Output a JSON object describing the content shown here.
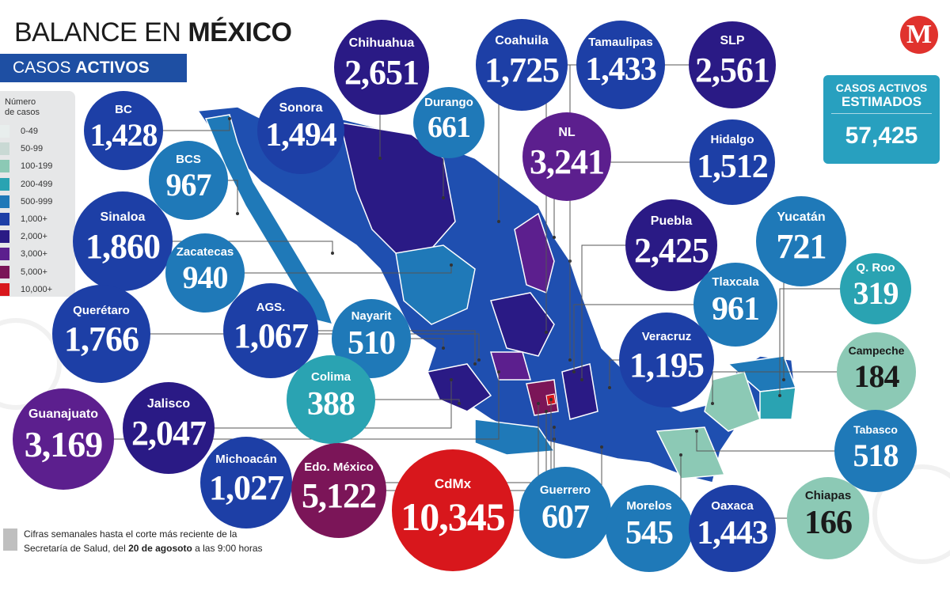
{
  "header": {
    "title_light": "BALANCE EN ",
    "title_bold": "MÉXICO",
    "subtitle_light": "CASOS ",
    "subtitle_bold": "ACTIVOS",
    "logo": "M"
  },
  "legend": {
    "title_line1": "Número",
    "title_line2": "de casos",
    "items": [
      {
        "label": "0-49",
        "color": "#e8eeed"
      },
      {
        "label": "50-99",
        "color": "#c9d9d4"
      },
      {
        "label": "100-199",
        "color": "#8cc9b5"
      },
      {
        "label": "200-499",
        "color": "#2aa3b2"
      },
      {
        "label": "500-999",
        "color": "#1f79b8"
      },
      {
        "label": "1,000+",
        "color": "#1d3fa6"
      },
      {
        "label": "2,000+",
        "color": "#2a1a85"
      },
      {
        "label": "3,000+",
        "color": "#5c1f8e"
      },
      {
        "label": "5,000+",
        "color": "#7b1558"
      },
      {
        "label": "10,000+",
        "color": "#d8171c"
      }
    ]
  },
  "total": {
    "line1": "CASOS ACTIVOS",
    "line2": "ESTIMADOS",
    "value": "57,425"
  },
  "note": {
    "line1": "Cifras semanales hasta el corte más reciente de la",
    "line2_pre": "Secretaría de Salud, del ",
    "line2_bold": "20 de agosoto",
    "line2_post": " a las 9:00 horas"
  },
  "states": [
    {
      "name": "BC",
      "value": "1,428",
      "color": "#1d3fa6"
    },
    {
      "name": "Sonora",
      "value": "1,494",
      "color": "#1d3fa6"
    },
    {
      "name": "Chihuahua",
      "value": "2,651",
      "color": "#2a1a85"
    },
    {
      "name": "Durango",
      "value": "661",
      "color": "#1f79b8"
    },
    {
      "name": "Coahuila",
      "value": "1,725",
      "color": "#1d3fa6"
    },
    {
      "name": "Tamaulipas",
      "value": "1,433",
      "color": "#1d3fa6"
    },
    {
      "name": "SLP",
      "value": "2,561",
      "color": "#2a1a85"
    },
    {
      "name": "NL",
      "value": "3,241",
      "color": "#5c1f8e"
    },
    {
      "name": "Hidalgo",
      "value": "1,512",
      "color": "#1d3fa6"
    },
    {
      "name": "BCS",
      "value": "967",
      "color": "#1f79b8"
    },
    {
      "name": "Sinaloa",
      "value": "1,860",
      "color": "#1d3fa6"
    },
    {
      "name": "Zacatecas",
      "value": "940",
      "color": "#1f79b8"
    },
    {
      "name": "Puebla",
      "value": "2,425",
      "color": "#2a1a85"
    },
    {
      "name": "Yucatán",
      "value": "721",
      "color": "#1f79b8"
    },
    {
      "name": "Q. Roo",
      "value": "319",
      "color": "#2aa3b2"
    },
    {
      "name": "Tlaxcala",
      "value": "961",
      "color": "#1f79b8"
    },
    {
      "name": "Querétaro",
      "value": "1,766",
      "color": "#1d3fa6"
    },
    {
      "name": "AGS.",
      "value": "1,067",
      "color": "#1d3fa6"
    },
    {
      "name": "Nayarit",
      "value": "510",
      "color": "#1f79b8"
    },
    {
      "name": "Veracruz",
      "value": "1,195",
      "color": "#1d3fa6"
    },
    {
      "name": "Campeche",
      "value": "184",
      "color": "#8cc9b5"
    },
    {
      "name": "Colima",
      "value": "388",
      "color": "#2aa3b2"
    },
    {
      "name": "Guanajuato",
      "value": "3,169",
      "color": "#5c1f8e"
    },
    {
      "name": "Jalisco",
      "value": "2,047",
      "color": "#2a1a85"
    },
    {
      "name": "Tabasco",
      "value": "518",
      "color": "#1f79b8"
    },
    {
      "name": "Michoacán",
      "value": "1,027",
      "color": "#1d3fa6"
    },
    {
      "name": "Edo. México",
      "value": "5,122",
      "color": "#7b1558"
    },
    {
      "name": "CdMx",
      "value": "10,345",
      "color": "#d8171c"
    },
    {
      "name": "Guerrero",
      "value": "607",
      "color": "#1f79b8"
    },
    {
      "name": "Morelos",
      "value": "545",
      "color": "#1f79b8"
    },
    {
      "name": "Oaxaca",
      "value": "1,443",
      "color": "#1d3fa6"
    },
    {
      "name": "Chiapas",
      "value": "166",
      "color": "#8cc9b5"
    }
  ]
}
